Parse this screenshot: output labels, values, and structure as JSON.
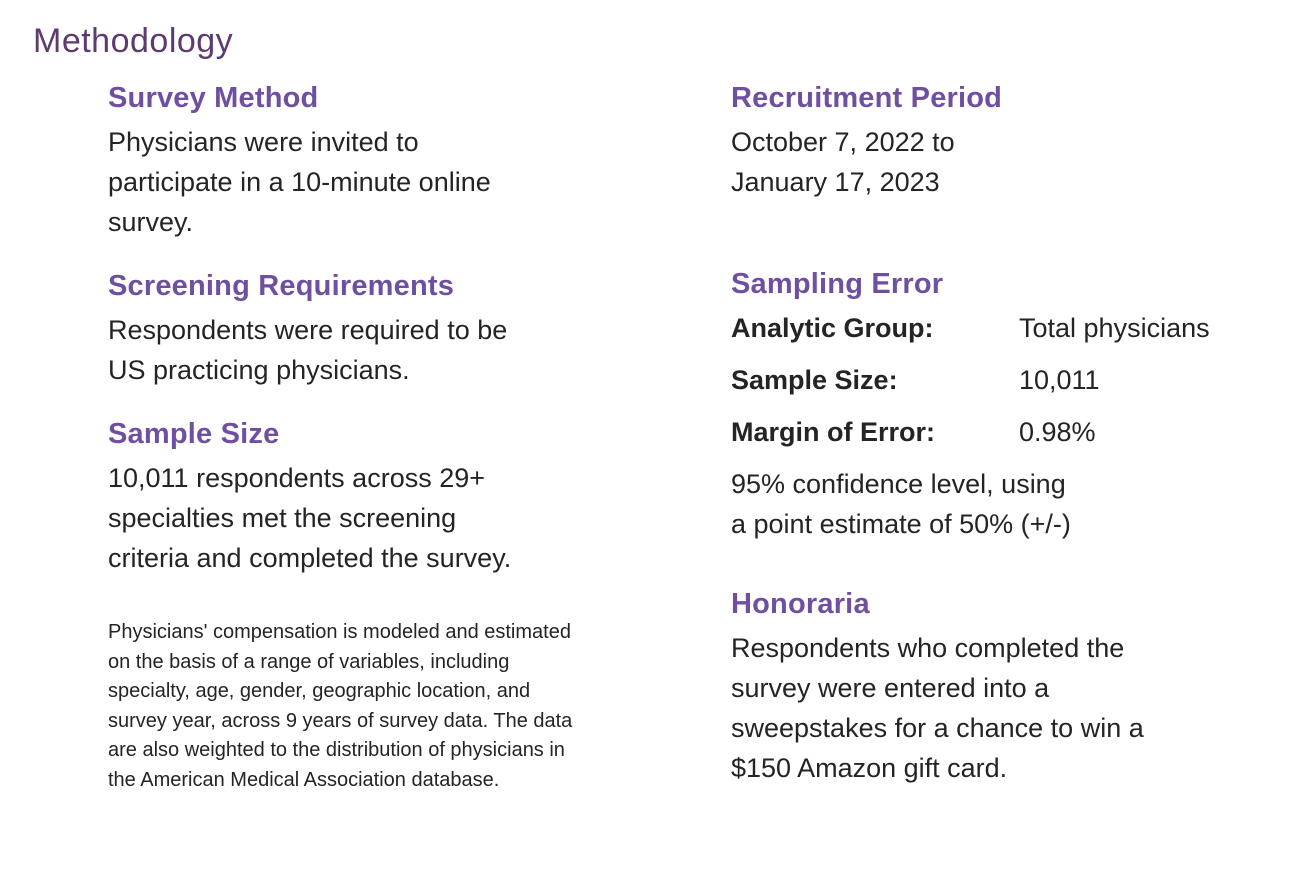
{
  "page": {
    "title": "Methodology"
  },
  "colors": {
    "bg": "#ffffff",
    "title-purple": "#5d3a70",
    "heading-purple": "#6f4f9f",
    "body-ink": "#242424"
  },
  "left_column": {
    "sections": [
      {
        "heading": "Survey Method",
        "body_lines": [
          "Physicians were invited to",
          "participate in a 10-minute online",
          "survey."
        ]
      },
      {
        "heading": "Screening Requirements",
        "body_lines": [
          "Respondents were required to be",
          "US practicing physicians."
        ]
      },
      {
        "heading": "Sample Size",
        "body_lines": [
          "10,011 respondents across 29+",
          "specialties met the screening",
          "criteria and completed the survey."
        ]
      }
    ],
    "footnote_lines": [
      "Physicians' compensation is modeled and estimated",
      "on the basis of a range of variables, including",
      "specialty, age, gender, geographic location, and",
      "survey year, across 9 years of survey data. The data",
      "are also weighted to the distribution of physicians in",
      "the American Medical Association database."
    ]
  },
  "right_column": {
    "recruitment": {
      "heading": "Recruitment Period",
      "body_lines": [
        "October 7, 2022 to",
        "January 17, 2023"
      ]
    },
    "sampling_error": {
      "heading": "Sampling Error",
      "rows": [
        {
          "label": "Analytic Group:",
          "value": "Total physicians"
        },
        {
          "label": "Sample Size:",
          "value": "10,011"
        },
        {
          "label": "Margin of Error:",
          "value": "0.98%"
        }
      ],
      "note_lines": [
        "95% confidence level, using",
        "a point estimate of 50% (+/-)"
      ]
    },
    "honoraria": {
      "heading": "Honoraria",
      "body_lines": [
        "Respondents who completed the",
        "survey were entered into a",
        "sweepstakes for a chance to win a",
        "$150 Amazon gift card."
      ]
    }
  }
}
